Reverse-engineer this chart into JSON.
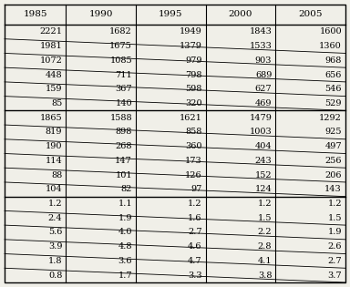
{
  "headers": [
    "1985",
    "1990",
    "1995",
    "2000",
    "2005"
  ],
  "section1": [
    [
      "2221",
      "1682",
      "1949",
      "1843",
      "1600"
    ],
    [
      "1981",
      "1675",
      "1379",
      "1533",
      "1360"
    ],
    [
      "1072",
      "1085",
      "979",
      "903",
      "968"
    ],
    [
      "448",
      "711",
      "798",
      "689",
      "656"
    ],
    [
      "159",
      "367",
      "598",
      "627",
      "546"
    ],
    [
      "85",
      "140",
      "320",
      "469",
      "529"
    ]
  ],
  "section2": [
    [
      "1865",
      "1588",
      "1621",
      "1479",
      "1292"
    ],
    [
      "819",
      "898",
      "858",
      "1003",
      "925"
    ],
    [
      "190",
      "268",
      "360",
      "404",
      "497"
    ],
    [
      "114",
      "147",
      "173",
      "243",
      "256"
    ],
    [
      "88",
      "101",
      "126",
      "152",
      "206"
    ],
    [
      "104",
      "82",
      "97",
      "124",
      "143"
    ]
  ],
  "section3": [
    [
      "1.2",
      "1.1",
      "1.2",
      "1.2",
      "1.2"
    ],
    [
      "2.4",
      "1.9",
      "1.6",
      "1.5",
      "1.5"
    ],
    [
      "5.6",
      "4.0",
      "2.7",
      "2.2",
      "1.9"
    ],
    [
      "3.9",
      "4.8",
      "4.6",
      "2.8",
      "2.6"
    ],
    [
      "1.8",
      "3.6",
      "4.7",
      "4.1",
      "2.7"
    ],
    [
      "0.8",
      "1.7",
      "3.3",
      "3.8",
      "3.7"
    ]
  ],
  "bg_color": "#f0efe8",
  "font_size": 7.0,
  "header_font_size": 7.5
}
